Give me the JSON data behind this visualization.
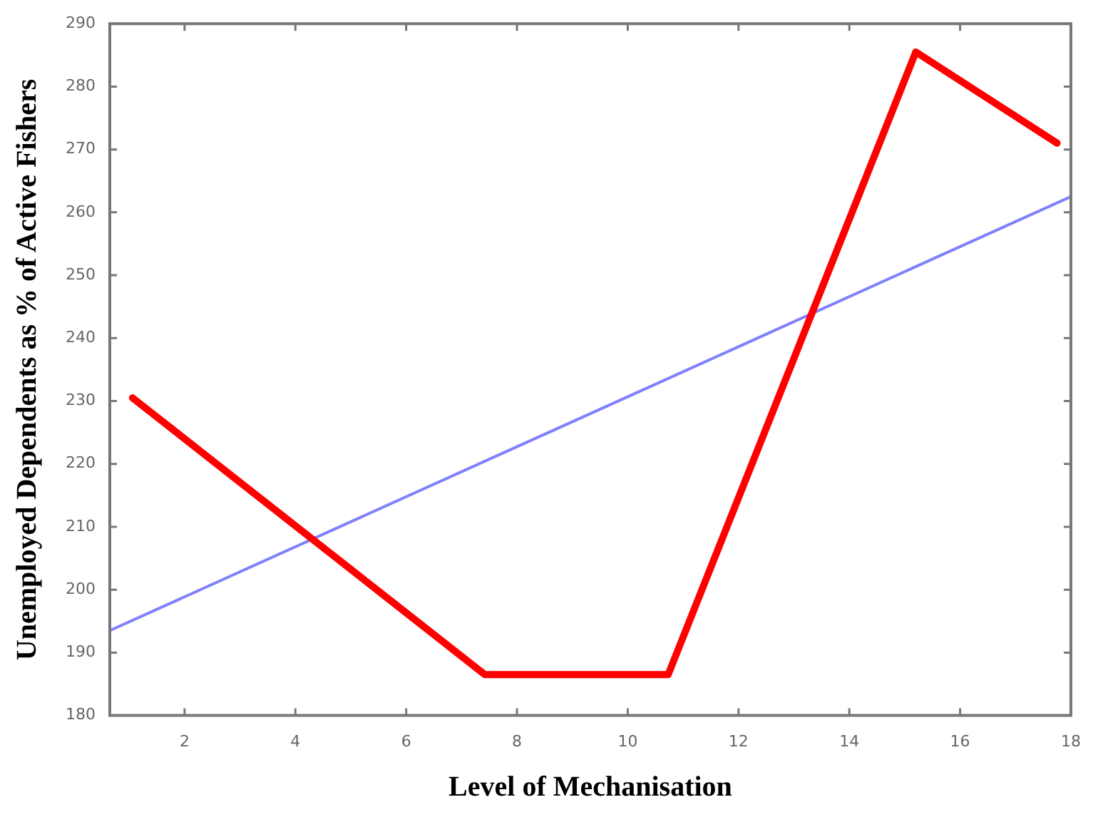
{
  "chart_data": {
    "type": "line",
    "xlabel": "Level of Mechanisation",
    "ylabel": "Unemployed Dependents as % of Active Fishers",
    "xlim": [
      0.65,
      18
    ],
    "xticks": [
      2,
      4,
      6,
      8,
      10,
      12,
      14,
      16,
      18
    ],
    "ylim": [
      180,
      290
    ],
    "yticks": [
      180,
      190,
      200,
      210,
      220,
      230,
      240,
      250,
      260,
      270,
      280,
      290
    ],
    "grid": false,
    "legend": false,
    "marker": "none",
    "line_style": "solid",
    "series": [
      {
        "color": "#ff0000",
        "x": [
          1.06,
          7.42,
          10.73,
          15.2,
          17.75
        ],
        "values": [
          230.5,
          186.5,
          186.5,
          285.5,
          271
        ]
      },
      {
        "color": "#8080ff",
        "x": [
          0.65,
          18
        ],
        "values": [
          193.5,
          262.5
        ]
      }
    ]
  }
}
